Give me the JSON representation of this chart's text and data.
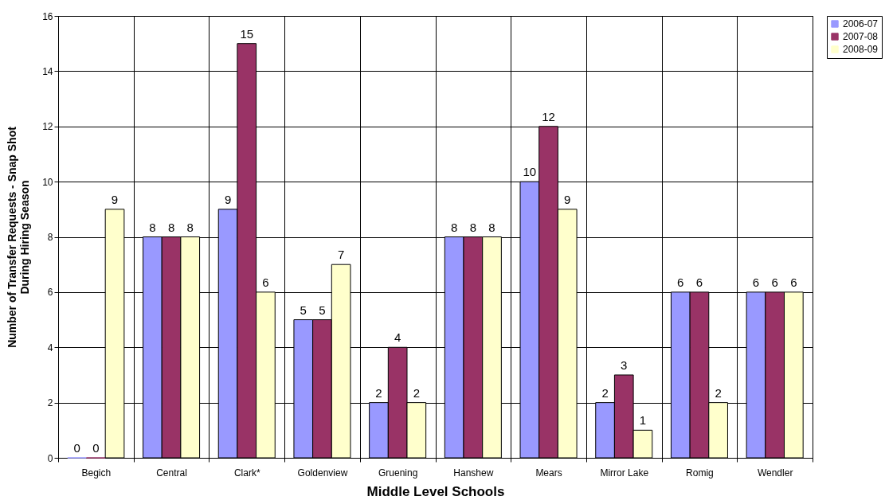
{
  "chart_data": {
    "type": "bar",
    "xlabel": "Middle Level Schools",
    "ylabel": "Number of Transfer Requests - Snap Shot During Hiring Season",
    "categories": [
      "Begich",
      "Central",
      "Clark*",
      "Goldenview",
      "Gruening",
      "Hanshew",
      "Mears",
      "Mirror Lake",
      "Romig",
      "Wendler"
    ],
    "series": [
      {
        "name": "2006-07",
        "color": "#9999ff",
        "values": [
          0,
          8,
          9,
          5,
          2,
          8,
          10,
          2,
          6,
          6
        ]
      },
      {
        "name": "2007-08",
        "color": "#993366",
        "values": [
          0,
          8,
          15,
          5,
          4,
          8,
          12,
          3,
          6,
          6
        ]
      },
      {
        "name": "2008-09",
        "color": "#ffffcc",
        "values": [
          9,
          8,
          6,
          7,
          2,
          8,
          9,
          1,
          2,
          6
        ]
      }
    ],
    "ylim": [
      0,
      16
    ],
    "yticks": [
      0,
      2,
      4,
      6,
      8,
      10,
      12,
      14,
      16
    ],
    "grid": true,
    "legend": "right",
    "data_labels": true
  }
}
